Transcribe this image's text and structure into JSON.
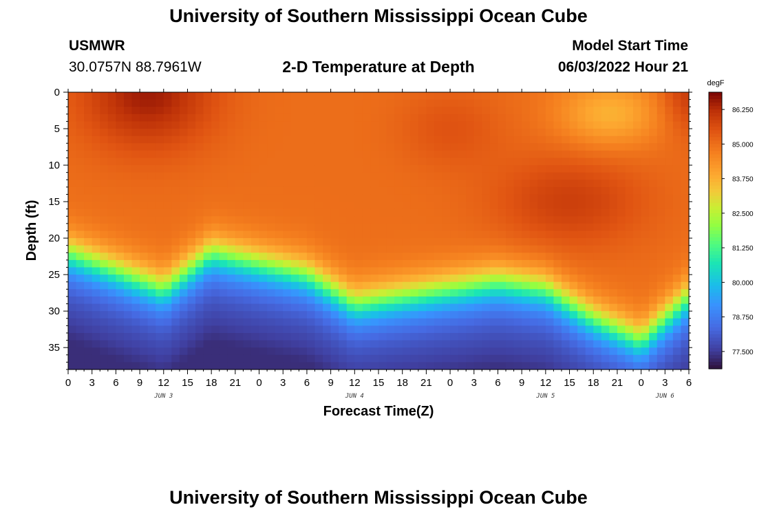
{
  "header": {
    "title": "University of Southern Mississippi Ocean Cube",
    "station": "USMWR",
    "coordinates": "30.0757N  88.7961W",
    "model_start_label": "Model Start Time",
    "model_start_value": "06/03/2022 Hour 21"
  },
  "footer": {
    "title": "University of Southern Mississippi Ocean Cube"
  },
  "chart_data": {
    "type": "heatmap",
    "title": "2-D Temperature at Depth",
    "xlabel": "Forecast Time(Z)",
    "ylabel": "Depth (ft)",
    "x_range_hours": [
      0,
      78
    ],
    "y_range_ft": [
      0,
      38
    ],
    "x_tick_labels": [
      "0",
      "3",
      "6",
      "9",
      "12",
      "15",
      "18",
      "21",
      "0",
      "3",
      "6",
      "9",
      "12",
      "15",
      "18",
      "21",
      "0",
      "3",
      "6",
      "9",
      "12",
      "15",
      "18",
      "21",
      "0",
      "3",
      "6"
    ],
    "date_labels": [
      {
        "label": "JUN 3",
        "hour": 12
      },
      {
        "label": "JUN 4",
        "hour": 36
      },
      {
        "label": "JUN 5",
        "hour": 60
      },
      {
        "label": "JUN 6",
        "hour": 75
      }
    ],
    "y_ticks": [
      0,
      5,
      10,
      15,
      20,
      25,
      30,
      35
    ],
    "colorbar": {
      "unit": "degF",
      "range": [
        76.875,
        86.875
      ],
      "ticks": [
        "86.250",
        "85.000",
        "83.750",
        "82.500",
        "81.250",
        "80.000",
        "78.750",
        "77.500"
      ],
      "tick_values": [
        86.25,
        85.0,
        83.75,
        82.5,
        81.25,
        80.0,
        78.75,
        77.5
      ]
    },
    "approx_thermocline_depth_ft": [
      {
        "hour": 0,
        "depth": 22
      },
      {
        "hour": 12,
        "depth": 27
      },
      {
        "hour": 18,
        "depth": 22
      },
      {
        "hour": 30,
        "depth": 25
      },
      {
        "hour": 36,
        "depth": 29
      },
      {
        "hour": 42,
        "depth": 28
      },
      {
        "hour": 48,
        "depth": 27
      },
      {
        "hour": 54,
        "depth": 26
      },
      {
        "hour": 60,
        "depth": 27
      },
      {
        "hour": 66,
        "depth": 31
      },
      {
        "hour": 72,
        "depth": 34
      },
      {
        "hour": 78,
        "depth": 28
      }
    ]
  }
}
